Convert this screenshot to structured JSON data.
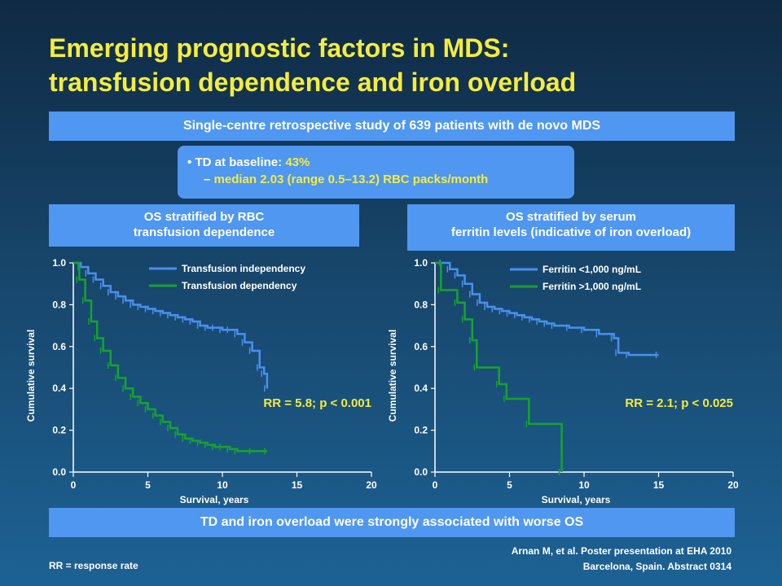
{
  "slide": {
    "title_line1": "Emerging prognostic factors in MDS:",
    "title_line2": "transfusion dependence and iron overload",
    "study_banner": "Single-centre retrospective study of 639 patients with de novo MDS",
    "td_bullet": "•",
    "td_label": "TD at baseline:",
    "td_value": "43%",
    "td_dash": "–",
    "td_detail": "median 2.03 (range 0.5–13.2) RBC packs/month",
    "conclusion_banner": "TD and iron overload were strongly associated with worse OS",
    "footnote": "RR = response rate",
    "reference_line1": "Arnan M, et al. Poster presentation at EHA 2010",
    "reference_line2": "Barcelona, Spain. Abstract 0314",
    "colors": {
      "title": "#f5ec3c",
      "banner": "#4f97f0",
      "series_blue": "#4a8ff0",
      "series_green": "#16a32e",
      "rr_text": "#f5ec3c"
    }
  },
  "chart_data": [
    {
      "type": "line",
      "panel_title_line1": "OS stratified by RBC",
      "panel_title_line2": "transfusion dependence",
      "xlabel": "Survival, years",
      "ylabel": "Cumulative survival",
      "xlim": [
        0,
        20
      ],
      "ylim": [
        0,
        1
      ],
      "xticks": [
        "0",
        "5",
        "10",
        "15",
        "20"
      ],
      "yticks": [
        "0.0",
        "0.2",
        "0.4",
        "0.6",
        "0.8",
        "1.0"
      ],
      "annotation": "RR = 5.8; p < 0.001",
      "legend": "top-right",
      "series": [
        {
          "name": "Transfusion independency",
          "color": "#4a8ff0",
          "points": [
            [
              0,
              1.0
            ],
            [
              0.5,
              0.98
            ],
            [
              1,
              0.95
            ],
            [
              1.5,
              0.92
            ],
            [
              2,
              0.89
            ],
            [
              2.5,
              0.86
            ],
            [
              3,
              0.84
            ],
            [
              3.5,
              0.82
            ],
            [
              4,
              0.8
            ],
            [
              4.5,
              0.79
            ],
            [
              5,
              0.78
            ],
            [
              5.5,
              0.77
            ],
            [
              6,
              0.76
            ],
            [
              6.5,
              0.75
            ],
            [
              7,
              0.74
            ],
            [
              7.5,
              0.73
            ],
            [
              8,
              0.72
            ],
            [
              8.5,
              0.7
            ],
            [
              9,
              0.69
            ],
            [
              9.5,
              0.69
            ],
            [
              10,
              0.68
            ],
            [
              10.5,
              0.68
            ],
            [
              11,
              0.66
            ],
            [
              11.5,
              0.62
            ],
            [
              12,
              0.58
            ],
            [
              12.5,
              0.5
            ],
            [
              12.8,
              0.47
            ],
            [
              13,
              0.4
            ]
          ]
        },
        {
          "name": "Transfusion dependency",
          "color": "#16a32e",
          "points": [
            [
              0,
              1.0
            ],
            [
              0.4,
              0.92
            ],
            [
              0.8,
              0.82
            ],
            [
              1.2,
              0.72
            ],
            [
              1.6,
              0.64
            ],
            [
              2,
              0.58
            ],
            [
              2.5,
              0.51
            ],
            [
              3,
              0.45
            ],
            [
              3.5,
              0.4
            ],
            [
              4,
              0.36
            ],
            [
              4.5,
              0.33
            ],
            [
              5,
              0.3
            ],
            [
              5.5,
              0.27
            ],
            [
              6,
              0.24
            ],
            [
              6.5,
              0.21
            ],
            [
              7,
              0.18
            ],
            [
              7.5,
              0.16
            ],
            [
              8,
              0.15
            ],
            [
              8.5,
              0.14
            ],
            [
              9,
              0.13
            ],
            [
              9.5,
              0.12
            ],
            [
              10,
              0.12
            ],
            [
              10.5,
              0.11
            ],
            [
              11,
              0.1
            ],
            [
              12,
              0.1
            ],
            [
              13,
              0.1
            ]
          ]
        }
      ]
    },
    {
      "type": "line",
      "panel_title_line1": "OS stratified by serum",
      "panel_title_line2": "ferritin levels (indicative of iron overload)",
      "xlabel": "Survival, years",
      "ylabel": "Cumulative survival",
      "xlim": [
        0,
        20
      ],
      "ylim": [
        0,
        1
      ],
      "xticks": [
        "0",
        "5",
        "10",
        "15",
        "20"
      ],
      "yticks": [
        "0.0",
        "0.2",
        "0.4",
        "0.6",
        "0.8",
        "1.0"
      ],
      "annotation": "RR = 2.1; p < 0.025",
      "legend": "top-right",
      "series": [
        {
          "name": "Ferritin <1,000 ng/mL",
          "color": "#4a8ff0",
          "points": [
            [
              0,
              1.0
            ],
            [
              0.5,
              1.0
            ],
            [
              1,
              0.97
            ],
            [
              1.5,
              0.94
            ],
            [
              2,
              0.9
            ],
            [
              2.5,
              0.85
            ],
            [
              3,
              0.81
            ],
            [
              3.5,
              0.79
            ],
            [
              4,
              0.78
            ],
            [
              4.5,
              0.77
            ],
            [
              5,
              0.76
            ],
            [
              5.5,
              0.75
            ],
            [
              6,
              0.74
            ],
            [
              6.5,
              0.73
            ],
            [
              7,
              0.72
            ],
            [
              7.5,
              0.71
            ],
            [
              8,
              0.7
            ],
            [
              9,
              0.69
            ],
            [
              10,
              0.68
            ],
            [
              11,
              0.66
            ],
            [
              12,
              0.64
            ],
            [
              12.3,
              0.57
            ],
            [
              13,
              0.56
            ],
            [
              15,
              0.56
            ]
          ]
        },
        {
          "name": "Ferritin >1,000 ng/mL",
          "color": "#16a32e",
          "points": [
            [
              0,
              1.0
            ],
            [
              0.4,
              0.87
            ],
            [
              1.5,
              0.81
            ],
            [
              2,
              0.73
            ],
            [
              2.5,
              0.63
            ],
            [
              2.8,
              0.5
            ],
            [
              4.3,
              0.42
            ],
            [
              4.8,
              0.35
            ],
            [
              6.3,
              0.23
            ],
            [
              8.5,
              0.0
            ]
          ]
        }
      ]
    }
  ]
}
